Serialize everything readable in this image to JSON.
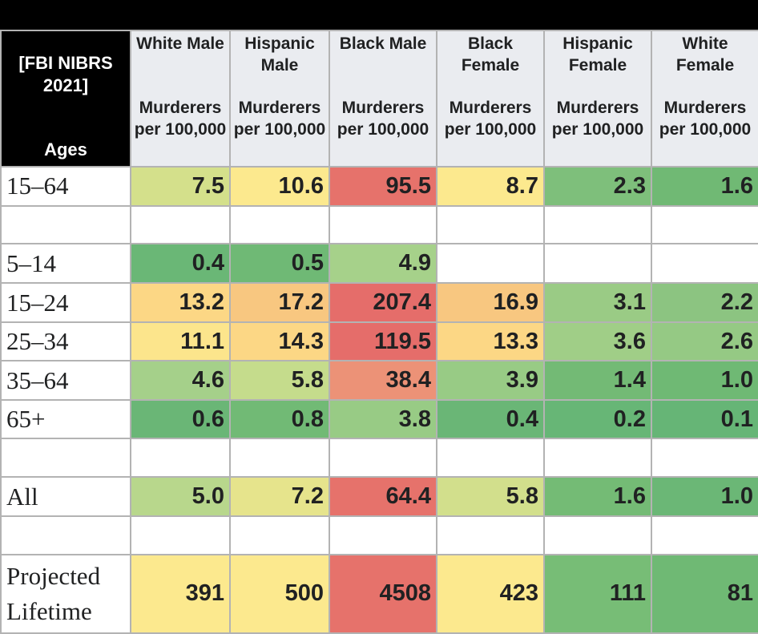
{
  "chart_data": {
    "type": "table",
    "corner_title": "[FBI NIBRS 2021]",
    "row_header_label": "Ages",
    "columns": [
      {
        "group": "White Male",
        "metric": "Murderers per 100,000"
      },
      {
        "group": "Hispanic Male",
        "metric": "Murderers per 100,000"
      },
      {
        "group": "Black Male",
        "metric": "Murderers per 100,000"
      },
      {
        "group": "Black Female",
        "metric": "Murderers per 100,000"
      },
      {
        "group": "Hispanic Female",
        "metric": "Murderers per 100,000"
      },
      {
        "group": "White Female",
        "metric": "Murderers per 100,000"
      }
    ],
    "rows": [
      {
        "label": "15–64",
        "values": [
          "7.5",
          "10.6",
          "95.5",
          "8.7",
          "2.3",
          "1.6"
        ],
        "colors": [
          "#d4e08b",
          "#fce98e",
          "#e6726b",
          "#fce98e",
          "#7ebf7b",
          "#70b974"
        ]
      },
      {
        "label": "",
        "values": [
          "",
          "",
          "",
          "",
          "",
          ""
        ],
        "colors": [
          "#ffffff",
          "#ffffff",
          "#ffffff",
          "#ffffff",
          "#ffffff",
          "#ffffff"
        ]
      },
      {
        "label": "5–14",
        "values": [
          "0.4",
          "0.5",
          "4.9",
          "",
          "",
          ""
        ],
        "colors": [
          "#6ab776",
          "#6fb975",
          "#a6d18a",
          "#ffffff",
          "#ffffff",
          "#ffffff"
        ]
      },
      {
        "label": "15–24",
        "values": [
          "13.2",
          "17.2",
          "207.4",
          "16.9",
          "3.1",
          "2.2"
        ],
        "colors": [
          "#fcd785",
          "#f8c780",
          "#e56d6a",
          "#f8c780",
          "#9acb85",
          "#8cc481"
        ]
      },
      {
        "label": "25–34",
        "values": [
          "11.1",
          "14.3",
          "119.5",
          "13.3",
          "3.6",
          "2.6"
        ],
        "colors": [
          "#fce58c",
          "#fcd785",
          "#e56d6a",
          "#fcd785",
          "#a0ce87",
          "#95c984"
        ]
      },
      {
        "label": "35–64",
        "values": [
          "4.6",
          "5.8",
          "38.4",
          "3.9",
          "1.4",
          "1.0"
        ],
        "colors": [
          "#a5d08a",
          "#c5dc8c",
          "#ec9277",
          "#98cb85",
          "#73ba75",
          "#6fb974"
        ]
      },
      {
        "label": "65+",
        "values": [
          "0.6",
          "0.8",
          "3.8",
          "0.4",
          "0.2",
          "0.1"
        ],
        "colors": [
          "#6ab676",
          "#71ba75",
          "#98cb85",
          "#6ab676",
          "#67b676",
          "#66b576"
        ]
      },
      {
        "label": "",
        "values": [
          "",
          "",
          "",
          "",
          "",
          ""
        ],
        "colors": [
          "#ffffff",
          "#ffffff",
          "#ffffff",
          "#ffffff",
          "#ffffff",
          "#ffffff"
        ]
      },
      {
        "label": "All",
        "values": [
          "5.0",
          "7.2",
          "64.4",
          "5.8",
          "1.6",
          "1.0"
        ],
        "colors": [
          "#b8d78c",
          "#e6e48c",
          "#e6726b",
          "#d2df8c",
          "#74bb75",
          "#6bb776"
        ]
      },
      {
        "label": "",
        "values": [
          "",
          "",
          "",
          "",
          "",
          ""
        ],
        "colors": [
          "#ffffff",
          "#ffffff",
          "#ffffff",
          "#ffffff",
          "#ffffff",
          "#ffffff"
        ]
      },
      {
        "label": "Projected Lifetime",
        "values": [
          "391",
          "500",
          "4508",
          "423",
          "111",
          "81"
        ],
        "colors": [
          "#fce98e",
          "#fce98e",
          "#e6726b",
          "#fce98e",
          "#77bd76",
          "#6fb974"
        ]
      }
    ]
  }
}
